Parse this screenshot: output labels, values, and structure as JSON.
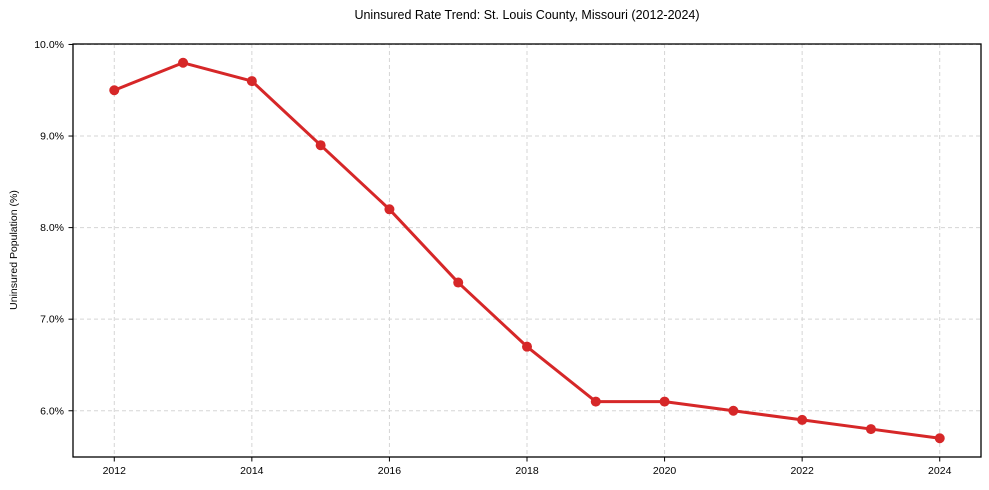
{
  "figure": {
    "background": "#ffffff"
  },
  "chart_data": {
    "type": "line",
    "title": "Uninsured Rate Trend: St. Louis County, Missouri (2012-2024)",
    "xlabel": "",
    "ylabel": "Uninsured Population (%)",
    "x": [
      2012,
      2013,
      2014,
      2015,
      2016,
      2017,
      2018,
      2019,
      2020,
      2021,
      2022,
      2023,
      2024
    ],
    "values": [
      9.5,
      9.8,
      9.6,
      8.9,
      8.2,
      7.4,
      6.7,
      6.1,
      6.1,
      6.0,
      5.9,
      5.8,
      5.7
    ],
    "xlim": [
      2011.4,
      2024.6
    ],
    "ylim": [
      5.495,
      10.005
    ],
    "xticks": [
      2012,
      2014,
      2016,
      2018,
      2020,
      2022,
      2024
    ],
    "xtick_labels": [
      "2012",
      "2014",
      "2016",
      "2018",
      "2020",
      "2022",
      "2024"
    ],
    "yticks": [
      6,
      7,
      8,
      9,
      10
    ],
    "ytick_labels": [
      "6.0%",
      "7.0%",
      "8.0%",
      "9.0%",
      "10.0%"
    ],
    "grid": true,
    "grid_color": "#d5d5d5",
    "legend": false,
    "line_color": "#d62728",
    "marker": "circle",
    "marker_size": 5,
    "line_width": 3,
    "axis_color": "#000000",
    "tick_label_color": "#000000"
  }
}
